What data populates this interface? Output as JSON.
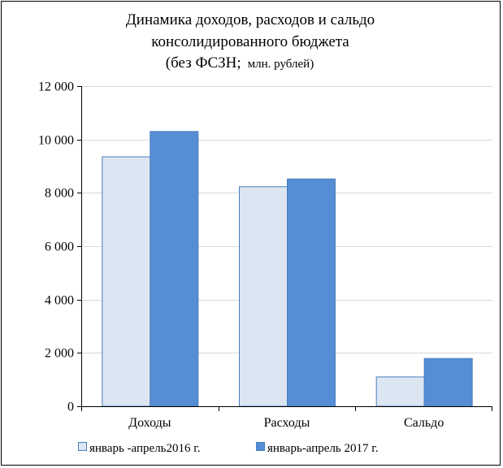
{
  "chart_data": {
    "type": "bar",
    "title": "Динамика доходов, расходов и сальдо консолидированного бюджета (без ФСЗН; млн. рублей)",
    "title_lines": [
      "Динамика доходов, расходов и сальдо",
      "консолидированного бюджета",
      "(без ФСЗН;",
      "млн. рублей)"
    ],
    "categories": [
      "Доходы",
      "Расходы",
      "Сальдо"
    ],
    "series": [
      {
        "name": "январь -апрель2016 г.",
        "values": [
          9350,
          8230,
          1100
        ],
        "color": "#dce6f2"
      },
      {
        "name": "январь-апрель 2017 г.",
        "values": [
          10300,
          8520,
          1790
        ],
        "color": "#558ed5"
      }
    ],
    "ylim": [
      0,
      12000
    ],
    "yticks": [
      0,
      2000,
      4000,
      6000,
      8000,
      10000,
      12000
    ],
    "ytick_labels": [
      "0",
      "2 000",
      "4 000",
      "6 000",
      "8 000",
      "10 000",
      "12 000"
    ],
    "grid": true,
    "legend_position": "bottom"
  }
}
